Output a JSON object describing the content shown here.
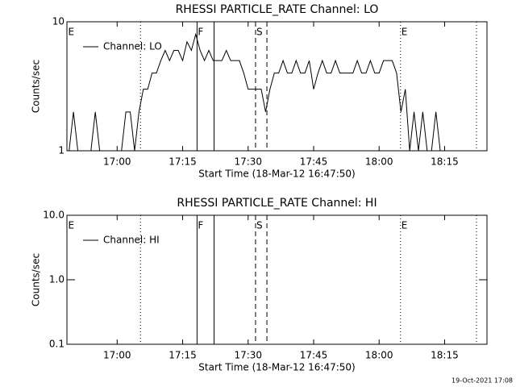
{
  "chart_data": [
    {
      "type": "line",
      "title": "RHESSI PARTICLE_RATE Channel: LO",
      "xlabel": "Start Time (18-Mar-12 16:47:50)",
      "ylabel": "Counts/sec",
      "xlim": [
        48.5,
        144.7
      ],
      "ylim": [
        1,
        10
      ],
      "log_y": true,
      "legend": "upper left",
      "xticks": [
        {
          "value": 60,
          "label": "17:00"
        },
        {
          "value": 75,
          "label": "17:15"
        },
        {
          "value": 90,
          "label": "17:30"
        },
        {
          "value": 105,
          "label": "17:45"
        },
        {
          "value": 120,
          "label": "18:00"
        },
        {
          "value": 135,
          "label": "18:15"
        }
      ],
      "yticks": [
        1,
        10
      ],
      "series": [
        {
          "name": "Channel: LO",
          "color": "#000000",
          "x": [
            49,
            50,
            51,
            52,
            53,
            54,
            55,
            56,
            57,
            58,
            59,
            60,
            61,
            62,
            63,
            64,
            65,
            66,
            67,
            68,
            69,
            70,
            71,
            72,
            73,
            74,
            75,
            76,
            77,
            78,
            79,
            80,
            81,
            82,
            83,
            84,
            85,
            86,
            87,
            88,
            89,
            90,
            91,
            92,
            93,
            94,
            95,
            96,
            97,
            98,
            99,
            100,
            101,
            102,
            103,
            104,
            105,
            106,
            107,
            108,
            109,
            110,
            111,
            112,
            113,
            114,
            115,
            116,
            117,
            118,
            119,
            120,
            121,
            122,
            123,
            124,
            125,
            126,
            127,
            128,
            129,
            130,
            131,
            132,
            133,
            134
          ],
          "values": [
            1,
            2,
            1,
            1,
            1,
            1,
            2,
            1,
            1,
            1,
            1,
            1,
            1,
            2,
            2,
            1,
            2,
            3,
            3,
            4,
            4,
            5,
            6,
            5,
            6,
            6,
            5,
            7,
            6,
            8,
            6,
            5,
            6,
            5,
            5,
            5,
            6,
            5,
            5,
            5,
            4,
            3,
            3,
            3,
            3,
            2,
            3,
            4,
            4,
            5,
            4,
            4,
            5,
            4,
            4,
            5,
            3,
            4,
            5,
            4,
            4,
            5,
            4,
            4,
            4,
            4,
            5,
            4,
            4,
            5,
            4,
            4,
            5,
            5,
            5,
            4,
            2,
            3,
            1,
            2,
            1,
            2,
            1,
            1,
            2,
            1
          ]
        }
      ],
      "events": [
        {
          "label": "E",
          "x": 48.6
        },
        {
          "label": "F",
          "x": 78.3
        },
        {
          "label": "S",
          "x": 91.7
        },
        {
          "label": "E",
          "x": 124.9
        }
      ],
      "lines": [
        {
          "x": 65.35,
          "style": "dotted"
        },
        {
          "x": 78.3,
          "style": "solid"
        },
        {
          "x": 82.2,
          "style": "solid"
        },
        {
          "x": 91.7,
          "style": "dashed"
        },
        {
          "x": 94.3,
          "style": "dashed"
        },
        {
          "x": 124.9,
          "style": "dotted"
        },
        {
          "x": 142.3,
          "style": "dotted"
        }
      ]
    },
    {
      "type": "line",
      "title": "RHESSI PARTICLE_RATE Channel: HI",
      "xlabel": "Start Time (18-Mar-12 16:47:50)",
      "ylabel": "Counts/sec",
      "xlim": [
        48.5,
        144.7
      ],
      "ylim": [
        0.1,
        10
      ],
      "log_y": true,
      "legend": "upper left",
      "xticks": [
        {
          "value": 60,
          "label": "17:00"
        },
        {
          "value": 75,
          "label": "17:15"
        },
        {
          "value": 90,
          "label": "17:30"
        },
        {
          "value": 105,
          "label": "17:45"
        },
        {
          "value": 120,
          "label": "18:00"
        },
        {
          "value": 135,
          "label": "18:15"
        }
      ],
      "yticks": [
        0.1,
        {
          "value": 1,
          "label": "1.0"
        },
        {
          "value": 10,
          "label": "10.0"
        }
      ],
      "series": [
        {
          "name": "Channel: HI",
          "color": "#000000",
          "x": [],
          "values": []
        }
      ],
      "events": [
        {
          "label": "E",
          "x": 48.6
        },
        {
          "label": "F",
          "x": 78.3
        },
        {
          "label": "S",
          "x": 91.7
        },
        {
          "label": "E",
          "x": 124.9
        }
      ],
      "lines": [
        {
          "x": 65.35,
          "style": "dotted"
        },
        {
          "x": 78.3,
          "style": "solid"
        },
        {
          "x": 82.2,
          "style": "solid"
        },
        {
          "x": 91.7,
          "style": "dashed"
        },
        {
          "x": 94.3,
          "style": "dashed"
        },
        {
          "x": 124.9,
          "style": "dotted"
        },
        {
          "x": 142.3,
          "style": "dotted"
        }
      ]
    }
  ],
  "footer": "19-Oct-2021 17:08"
}
